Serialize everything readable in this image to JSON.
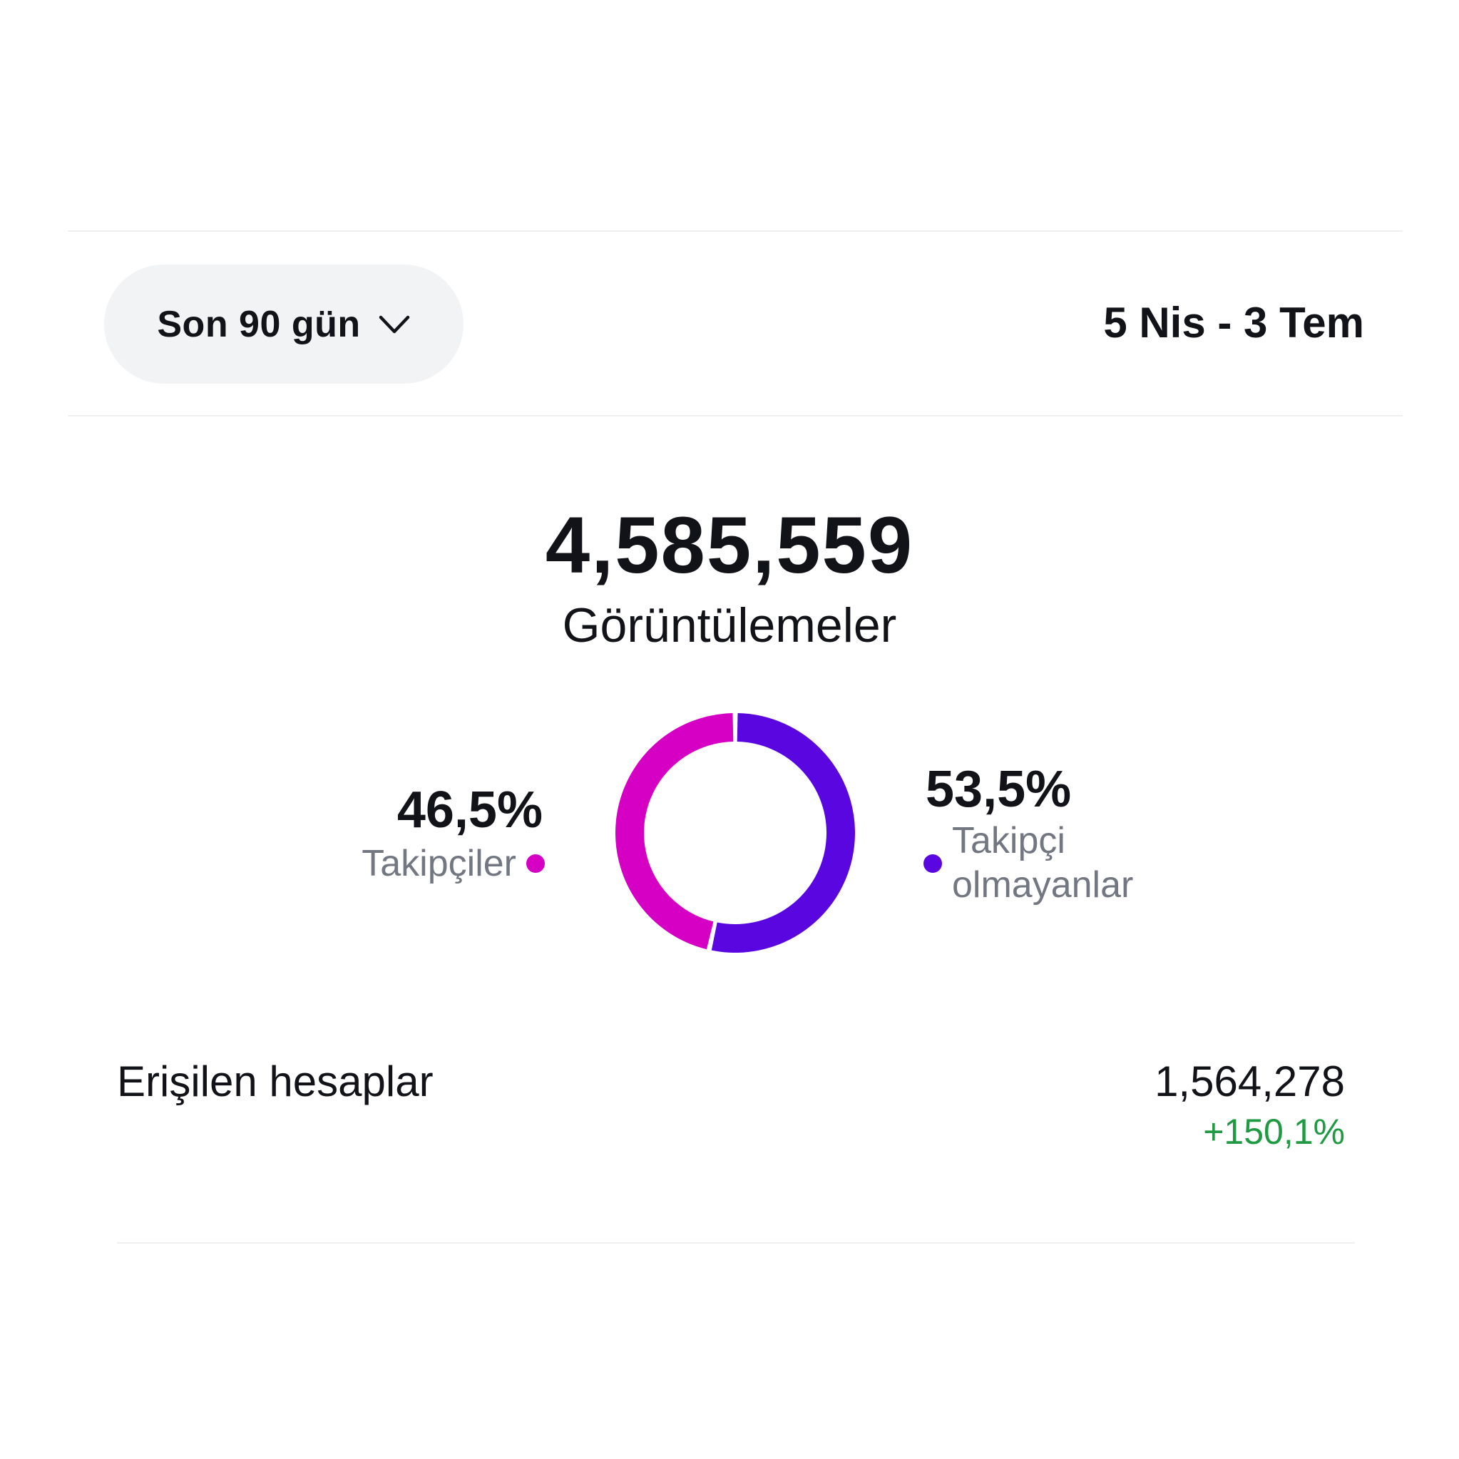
{
  "filter": {
    "label": "Son 90 gün",
    "icon": "chevron-down-icon"
  },
  "date_range": "5 Nis - 3 Tem",
  "summary": {
    "value": "4,585,559",
    "label": "Görüntülemeler"
  },
  "colors": {
    "followers": "#d500c4",
    "non_followers": "#5a06e0",
    "positive_change": "#1f9a43"
  },
  "chart_data": {
    "type": "pie",
    "style": "donut",
    "labels": [
      "Takipçiler",
      "Takipçi olmayanlar"
    ],
    "values": [
      46.5,
      53.5
    ],
    "value_labels": [
      "46,5%",
      "53,5%"
    ],
    "colors": [
      "#d500c4",
      "#5a06e0"
    ]
  },
  "reach": {
    "label": "Erişilen hesaplar",
    "value": "1,564,278",
    "change": "+150,1%"
  }
}
